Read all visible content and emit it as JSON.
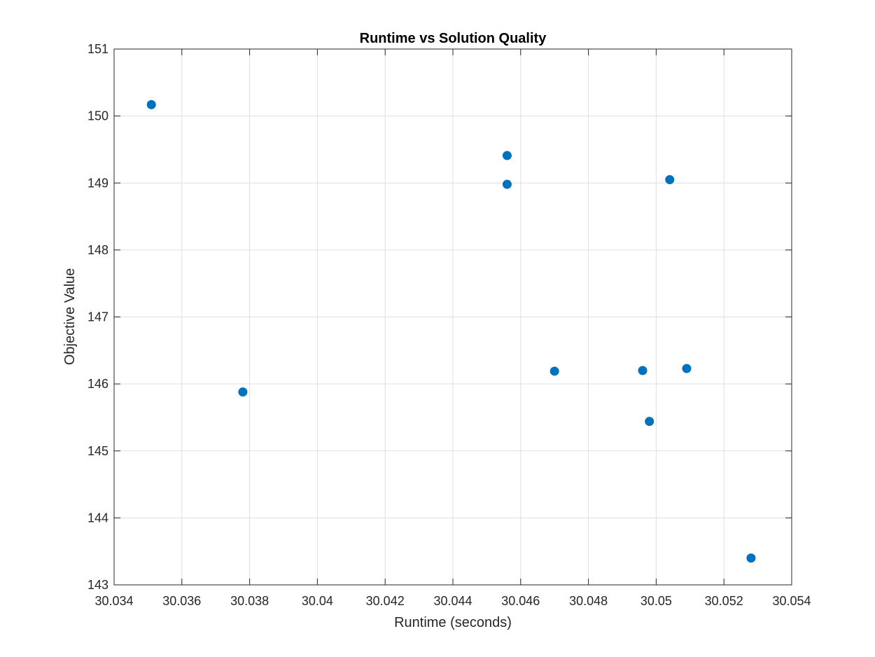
{
  "chart_data": {
    "type": "scatter",
    "title": "Runtime vs Solution Quality",
    "xlabel": "Runtime (seconds)",
    "ylabel": "Objective Value",
    "xlim": [
      30.034,
      30.054
    ],
    "ylim": [
      143,
      151
    ],
    "xticks": [
      30.034,
      30.036,
      30.038,
      30.04,
      30.042,
      30.044,
      30.046,
      30.048,
      30.05,
      30.052,
      30.054
    ],
    "xtick_labels": [
      "30.034",
      "30.036",
      "30.038",
      "30.04",
      "30.042",
      "30.044",
      "30.046",
      "30.048",
      "30.05",
      "30.052",
      "30.054"
    ],
    "yticks": [
      143,
      144,
      145,
      146,
      147,
      148,
      149,
      150,
      151
    ],
    "ytick_labels": [
      "143",
      "144",
      "145",
      "146",
      "147",
      "148",
      "149",
      "150",
      "151"
    ],
    "grid": true,
    "series": [
      {
        "color": "#0072BD",
        "points": [
          {
            "x": 30.0351,
            "y": 150.17
          },
          {
            "x": 30.0378,
            "y": 145.88
          },
          {
            "x": 30.0456,
            "y": 149.41
          },
          {
            "x": 30.0456,
            "y": 148.98
          },
          {
            "x": 30.047,
            "y": 146.19
          },
          {
            "x": 30.0496,
            "y": 146.2
          },
          {
            "x": 30.0498,
            "y": 145.44
          },
          {
            "x": 30.0504,
            "y": 149.05
          },
          {
            "x": 30.0509,
            "y": 146.23
          },
          {
            "x": 30.0528,
            "y": 143.4
          }
        ]
      }
    ]
  }
}
